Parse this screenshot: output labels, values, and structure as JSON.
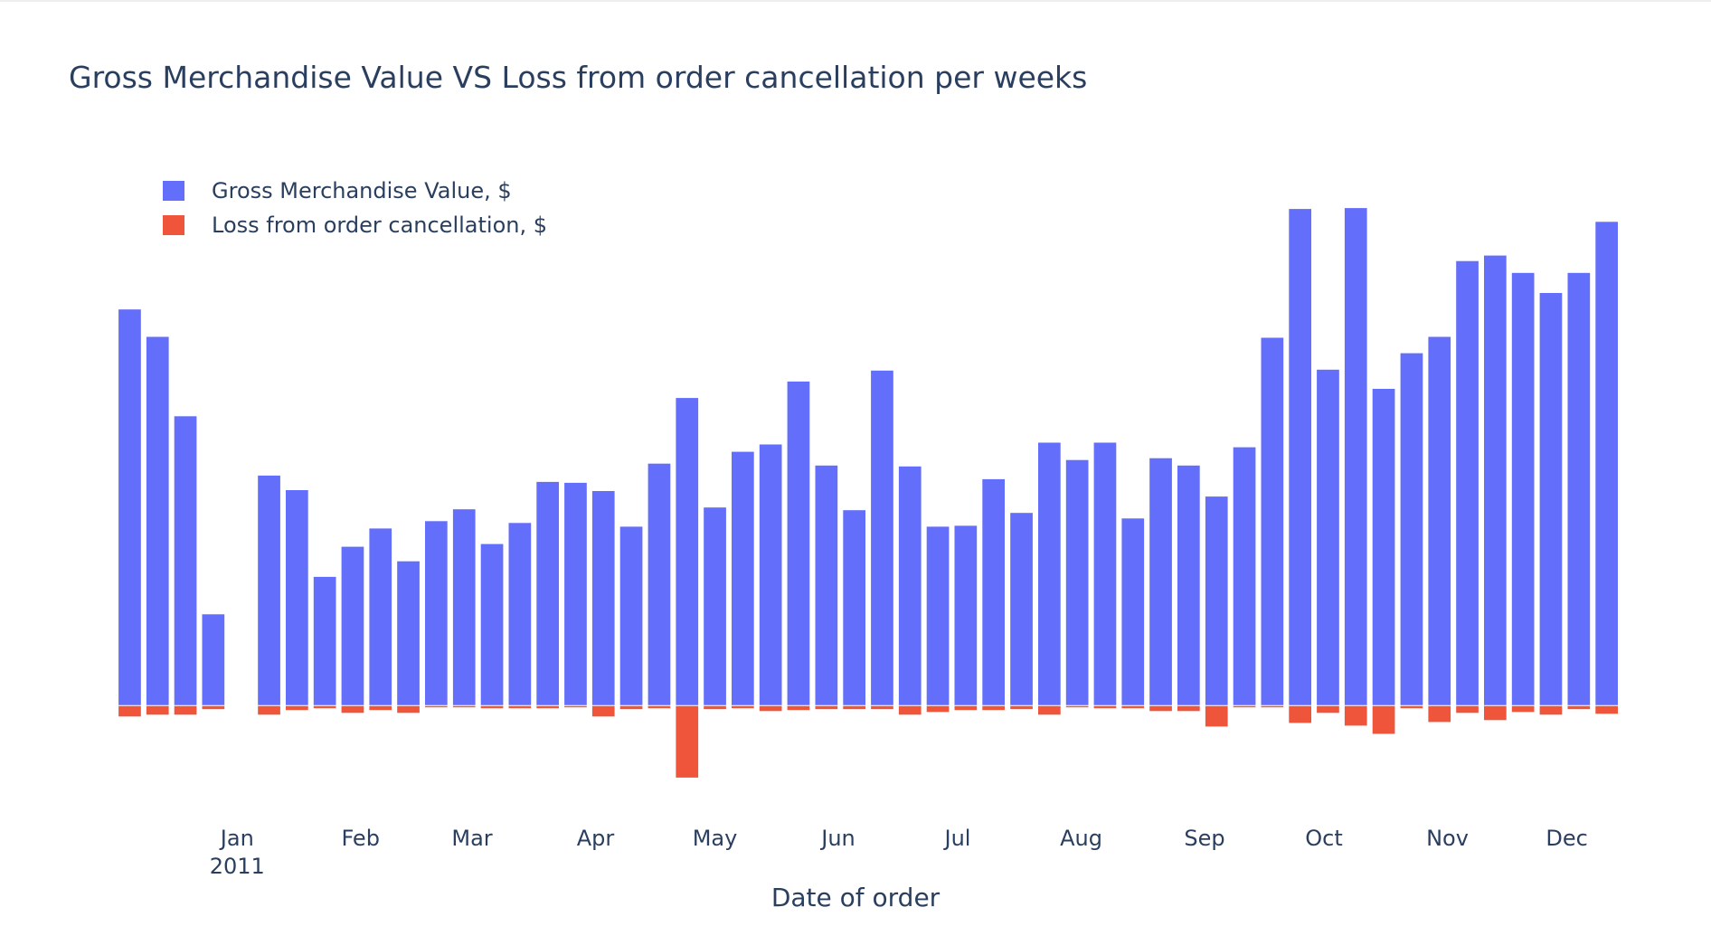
{
  "chart_data": {
    "type": "bar",
    "title": "Gross Merchandise Value VS Loss from order cancellation per weeks",
    "xlabel": "Date of order",
    "ylabel": "",
    "barmode": "relative",
    "grid": false,
    "legend_position": "top-left",
    "x": [
      "2010-12-05",
      "2010-12-12",
      "2010-12-19",
      "2010-12-26",
      "2011-01-09",
      "2011-01-16",
      "2011-01-23",
      "2011-01-30",
      "2011-02-06",
      "2011-02-13",
      "2011-02-20",
      "2011-02-27",
      "2011-03-06",
      "2011-03-13",
      "2011-03-20",
      "2011-03-27",
      "2011-04-03",
      "2011-04-10",
      "2011-04-17",
      "2011-04-24",
      "2011-05-01",
      "2011-05-08",
      "2011-05-15",
      "2011-05-22",
      "2011-05-29",
      "2011-06-05",
      "2011-06-12",
      "2011-06-19",
      "2011-06-26",
      "2011-07-03",
      "2011-07-10",
      "2011-07-17",
      "2011-07-24",
      "2011-07-31",
      "2011-08-07",
      "2011-08-14",
      "2011-08-21",
      "2011-08-28",
      "2011-09-04",
      "2011-09-11",
      "2011-09-18",
      "2011-09-25",
      "2011-10-02",
      "2011-10-09",
      "2011-10-16",
      "2011-10-23",
      "2011-10-30",
      "2011-11-06",
      "2011-11-13",
      "2011-11-20",
      "2011-11-27",
      "2011-12-04",
      "2011-12-11"
    ],
    "series": [
      {
        "name": "Gross Merchandise Value, $",
        "color": "#636efa",
        "values": [
          434,
          404,
          317,
          100,
          252,
          236,
          141,
          174,
          194,
          158,
          202,
          215,
          177,
          200,
          245,
          244,
          235,
          196,
          265,
          337,
          217,
          278,
          286,
          355,
          263,
          214,
          367,
          262,
          196,
          197,
          248,
          211,
          288,
          269,
          288,
          205,
          271,
          263,
          229,
          283,
          403,
          544,
          368,
          545,
          347,
          386,
          404,
          487,
          493,
          474,
          452,
          474,
          530
        ]
      },
      {
        "name": "Loss from order cancellation, $",
        "color": "#ef553b",
        "values": [
          -12,
          -10,
          -10,
          -4,
          -10,
          -5,
          -3,
          -8,
          -5,
          -8,
          -2,
          -2,
          -3,
          -3,
          -3,
          -2,
          -12,
          -4,
          -3,
          -79,
          -4,
          -3,
          -6,
          -5,
          -4,
          -4,
          -4,
          -10,
          -7,
          -5,
          -5,
          -4,
          -10,
          -2,
          -3,
          -3,
          -6,
          -6,
          -23,
          -2,
          -2,
          -19,
          -8,
          -22,
          -31,
          -3,
          -18,
          -8,
          -16,
          -7,
          -10,
          -4,
          -9
        ]
      }
    ],
    "x_ticks": [
      {
        "date": "2011-01-01",
        "label": "Jan",
        "sublabel": "2011"
      },
      {
        "date": "2011-02-01",
        "label": "Feb",
        "sublabel": ""
      },
      {
        "date": "2011-03-01",
        "label": "Mar",
        "sublabel": ""
      },
      {
        "date": "2011-04-01",
        "label": "Apr",
        "sublabel": ""
      },
      {
        "date": "2011-05-01",
        "label": "May",
        "sublabel": ""
      },
      {
        "date": "2011-06-01",
        "label": "Jun",
        "sublabel": ""
      },
      {
        "date": "2011-07-01",
        "label": "Jul",
        "sublabel": ""
      },
      {
        "date": "2011-08-01",
        "label": "Aug",
        "sublabel": ""
      },
      {
        "date": "2011-09-01",
        "label": "Sep",
        "sublabel": ""
      },
      {
        "date": "2011-10-01",
        "label": "Oct",
        "sublabel": ""
      },
      {
        "date": "2011-11-01",
        "label": "Nov",
        "sublabel": ""
      },
      {
        "date": "2011-12-01",
        "label": "Dec",
        "sublabel": ""
      }
    ],
    "ylim": [
      -85,
      560
    ],
    "y_axis_visible": false
  }
}
